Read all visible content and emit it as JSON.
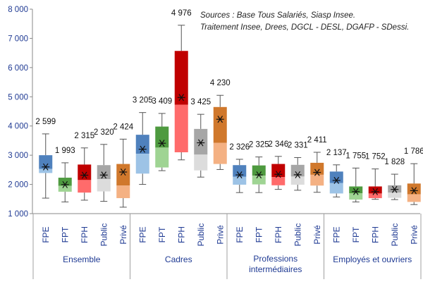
{
  "source_note": {
    "line1": "Sources : Base Tous Salariés, Siasp Insee.",
    "line2": "Traitement Insee, Drees, DGCL - DESL, DGAFP - SDessi."
  },
  "chart_data": {
    "type": "boxplot",
    "title": "",
    "xlabel": "",
    "ylabel": "",
    "ylim": [
      1000,
      8000
    ],
    "yticks": [
      "1 000",
      "2 000",
      "3 000",
      "4 000",
      "5 000",
      "6 000",
      "7 000",
      "8 000"
    ],
    "grid": false,
    "legend": "none",
    "mean_marker": "asterisk",
    "colors": {
      "FPE": [
        "#4f81bd",
        "#9dc3e6"
      ],
      "FPT": [
        "#4e9a3f",
        "#9fd493"
      ],
      "FPH": [
        "#c00000",
        "#ff6b6b"
      ],
      "Public": [
        "#a6a6a6",
        "#dcdcdc"
      ],
      "Privé": [
        "#d0782c",
        "#f4b183"
      ]
    },
    "groups": [
      {
        "label": "Ensemble",
        "label_lines": [
          "Ensemble"
        ],
        "items": [
          {
            "category": "FPE",
            "min": 1530,
            "q1": 2390,
            "median": 2530,
            "q3": 3000,
            "max": 3730,
            "mean": 2599,
            "mean_label": "2 599"
          },
          {
            "category": "FPT",
            "min": 1400,
            "q1": 1750,
            "median": 1950,
            "q3": 2230,
            "max": 2740,
            "mean": 1993,
            "mean_label": "1 993"
          },
          {
            "category": "FPH",
            "min": 1460,
            "q1": 1720,
            "median": 2150,
            "q3": 2680,
            "max": 3250,
            "mean": 2315,
            "mean_label": "2 315"
          },
          {
            "category": "Public",
            "min": 1420,
            "q1": 1760,
            "median": 2180,
            "q3": 2660,
            "max": 3370,
            "mean": 2320,
            "mean_label": "2 320"
          },
          {
            "category": "Privé",
            "min": 1220,
            "q1": 1530,
            "median": 1960,
            "q3": 2700,
            "max": 3550,
            "mean": 2424,
            "mean_label": "2 424"
          }
        ]
      },
      {
        "label": "Cadres",
        "label_lines": [
          "Cadres"
        ],
        "items": [
          {
            "category": "FPE",
            "min": 2000,
            "q1": 2370,
            "median": 3050,
            "q3": 3700,
            "max": 4460,
            "mean": 3205,
            "mean_label": "3 205"
          },
          {
            "category": "FPT",
            "min": 2470,
            "q1": 2580,
            "median": 3260,
            "q3": 3980,
            "max": 4430,
            "mean": 3409,
            "mean_label": "3 409"
          },
          {
            "category": "FPH",
            "min": 2840,
            "q1": 3100,
            "median": 4730,
            "q3": 6570,
            "max": 7450,
            "mean": 4976,
            "mean_label": "4 976"
          },
          {
            "category": "Public",
            "min": 2250,
            "q1": 2480,
            "median": 3020,
            "q3": 3900,
            "max": 4400,
            "mean": 3425,
            "mean_label": "3 425"
          },
          {
            "category": "Privé",
            "min": 2510,
            "q1": 2700,
            "median": 3420,
            "q3": 4650,
            "max": 5050,
            "mean": 4230,
            "mean_label": "4 230"
          }
        ]
      },
      {
        "label": "Professions intermédiaires",
        "label_lines": [
          "Professions",
          "intermédiaires"
        ],
        "items": [
          {
            "category": "FPE",
            "min": 1720,
            "q1": 1990,
            "median": 2260,
            "q3": 2660,
            "max": 2860,
            "mean": 2326,
            "mean_label": "2 326"
          },
          {
            "category": "FPT",
            "min": 1720,
            "q1": 2000,
            "median": 2300,
            "q3": 2650,
            "max": 2940,
            "mean": 2325,
            "mean_label": "2 325"
          },
          {
            "category": "FPH",
            "min": 1830,
            "q1": 1970,
            "median": 2250,
            "q3": 2700,
            "max": 2960,
            "mean": 2346,
            "mean_label": "2 346"
          },
          {
            "category": "Public",
            "min": 1800,
            "q1": 1990,
            "median": 2270,
            "q3": 2670,
            "max": 2920,
            "mean": 2331,
            "mean_label": "2 331"
          },
          {
            "category": "Privé",
            "min": 1730,
            "q1": 1960,
            "median": 2330,
            "q3": 2740,
            "max": 3100,
            "mean": 2411,
            "mean_label": "2 411"
          }
        ]
      },
      {
        "label": "Employés et ouvriers",
        "label_lines": [
          "Employés et ouvriers"
        ],
        "items": [
          {
            "category": "FPE",
            "min": 1570,
            "q1": 1690,
            "median": 2050,
            "q3": 2440,
            "max": 2670,
            "mean": 2137,
            "mean_label": "2 137"
          },
          {
            "category": "FPT",
            "min": 1400,
            "q1": 1480,
            "median": 1700,
            "q3": 1930,
            "max": 2560,
            "mean": 1755,
            "mean_label": "1 755"
          },
          {
            "category": "FPH",
            "min": 1490,
            "q1": 1530,
            "median": 1690,
            "q3": 1930,
            "max": 2530,
            "mean": 1752,
            "mean_label": "1 752"
          },
          {
            "category": "Public",
            "min": 1480,
            "q1": 1540,
            "median": 1720,
            "q3": 1970,
            "max": 2350,
            "mean": 1828,
            "mean_label": "1 828"
          },
          {
            "category": "Privé",
            "min": 1310,
            "q1": 1400,
            "median": 1660,
            "q3": 2030,
            "max": 2710,
            "mean": 1786,
            "mean_label": "1 786"
          }
        ]
      }
    ]
  }
}
